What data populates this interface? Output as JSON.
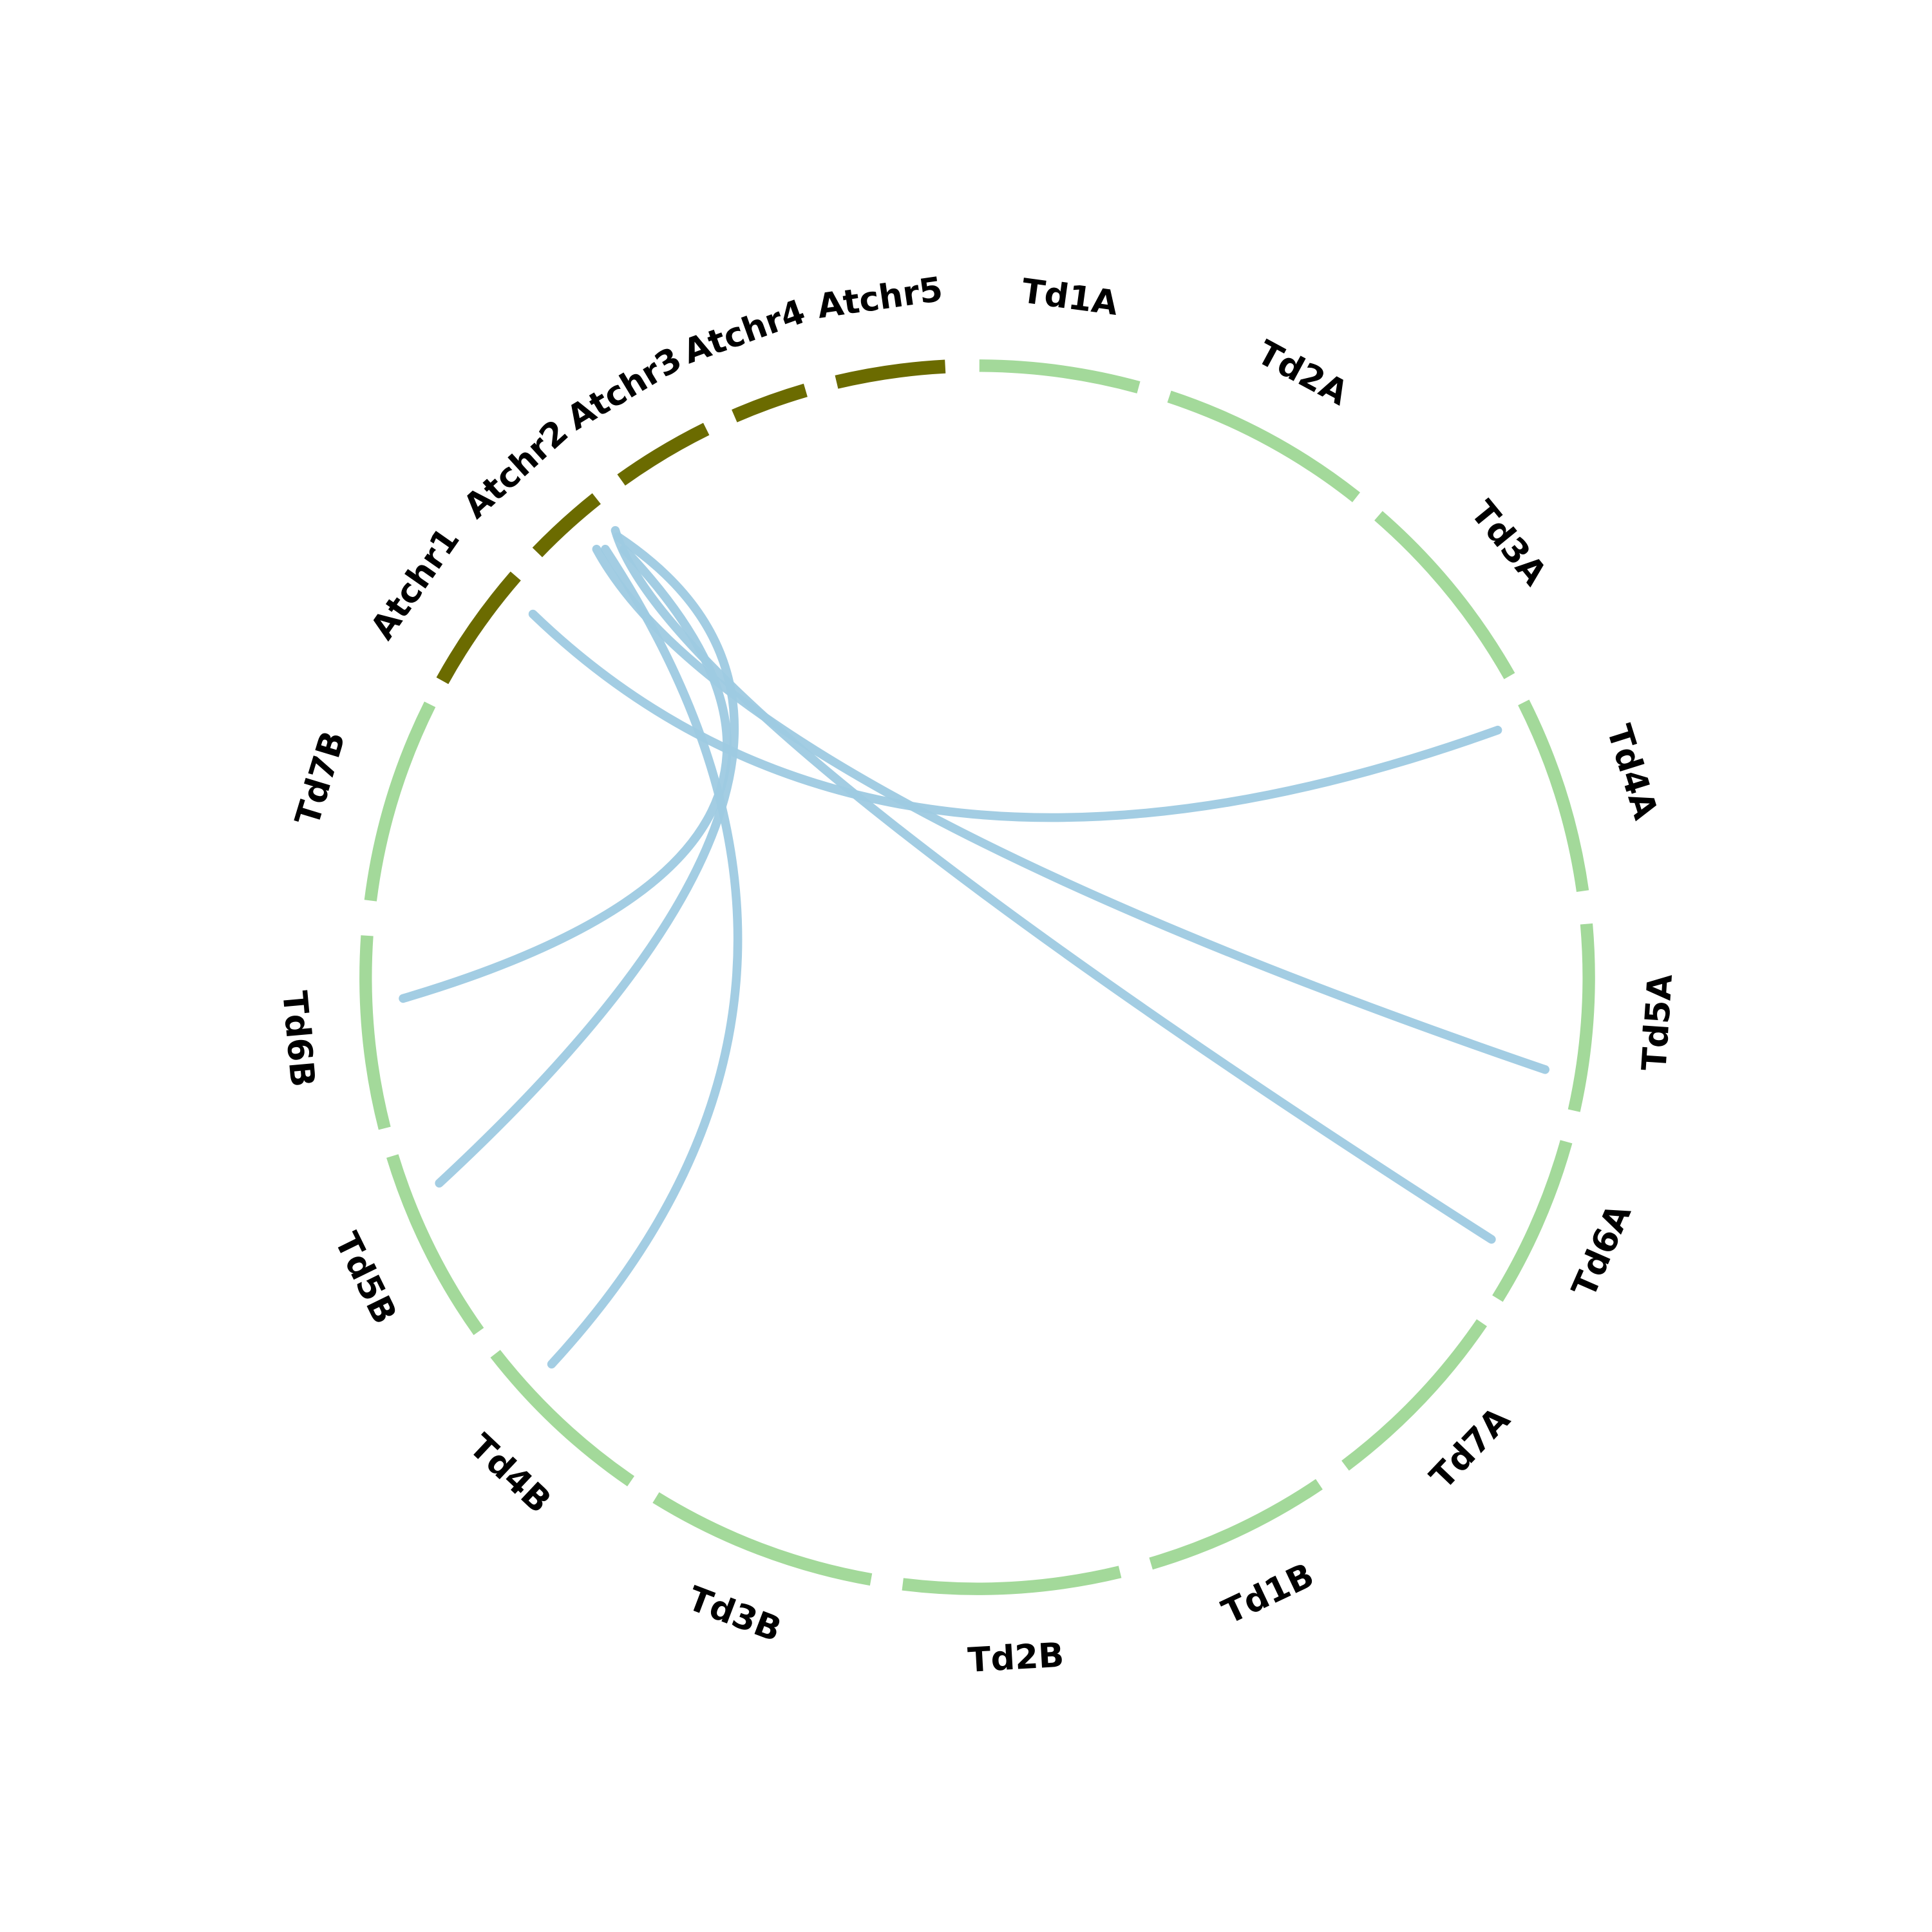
{
  "segments": [
    {
      "label": "Atchr1",
      "color": "#6b6b00"
    },
    {
      "label": "Atchr2",
      "color": "#6b6b00"
    },
    {
      "label": "Atchr3",
      "color": "#6b6b00"
    },
    {
      "label": "Atchr4",
      "color": "#6b6b00"
    },
    {
      "label": "Atchr5",
      "color": "#6b6b00"
    },
    {
      "label": "Td1A",
      "color": "#a3d99a"
    },
    {
      "label": "Td2A",
      "color": "#a3d99a"
    },
    {
      "label": "Td3A",
      "color": "#a3d99a"
    },
    {
      "label": "Td4A",
      "color": "#a3d99a"
    },
    {
      "label": "Td5A",
      "color": "#a3d99a"
    },
    {
      "label": "Td6A",
      "color": "#a3d99a"
    },
    {
      "label": "Td7A",
      "color": "#a3d99a"
    },
    {
      "label": "Td1B",
      "color": "#a3d99a"
    },
    {
      "label": "Td2B",
      "color": "#a3d99a"
    },
    {
      "label": "Td3B",
      "color": "#a3d99a"
    },
    {
      "label": "Td4B",
      "color": "#a3d99a"
    },
    {
      "label": "Td5B",
      "color": "#a3d99a"
    },
    {
      "label": "Td6B",
      "color": "#a3d99a"
    },
    {
      "label": "Td7B",
      "color": "#a3d99a"
    }
  ]
}
